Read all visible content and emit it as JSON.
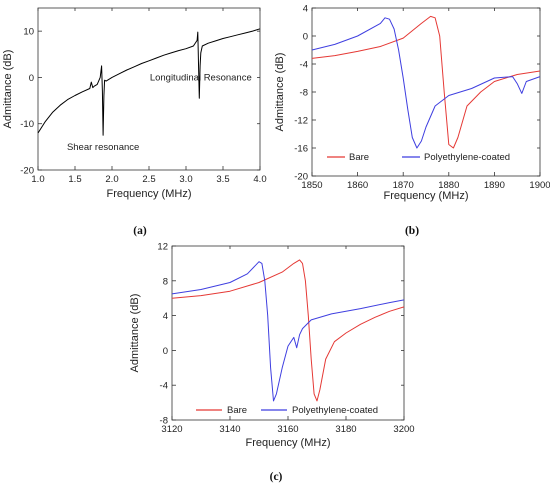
{
  "chart_data": [
    {
      "type": "line",
      "caption": "(a)",
      "xlabel": "Frequency (MHz)",
      "ylabel": "Admittance (dB)",
      "xlim": [
        1.0,
        4.0
      ],
      "ylim": [
        -20,
        15
      ],
      "xticks": [
        1.0,
        1.5,
        2.0,
        2.5,
        3.0,
        3.5,
        4.0
      ],
      "yticks": [
        -20,
        -10,
        0,
        10
      ],
      "xtick_labels": [
        "1.0",
        "1.5",
        "2.0",
        "2.5",
        "3.0",
        "3.5",
        "4.0"
      ],
      "ytick_labels": [
        "-20",
        "-10",
        "0",
        "10"
      ],
      "annotations": [
        {
          "text": "Shear resonance",
          "x": 1.88,
          "y": -15
        },
        {
          "text": "Longitudinal Resonance",
          "x": 3.2,
          "y": 0
        }
      ],
      "series": [
        {
          "color": "#000000",
          "x": [
            1.0,
            1.1,
            1.2,
            1.3,
            1.4,
            1.5,
            1.6,
            1.7,
            1.72,
            1.74,
            1.76,
            1.8,
            1.84,
            1.86,
            1.87,
            1.88,
            1.89,
            1.9,
            1.92,
            2.0,
            2.1,
            2.2,
            2.3,
            2.4,
            2.5,
            2.6,
            2.7,
            2.8,
            2.9,
            3.0,
            3.1,
            3.15,
            3.16,
            3.17,
            3.18,
            3.19,
            3.2,
            3.22,
            3.3,
            3.4,
            3.5,
            3.6,
            3.7,
            3.8,
            3.9,
            4.0
          ],
          "y": [
            -12.0,
            -9.5,
            -7.5,
            -6.0,
            -4.8,
            -3.9,
            -3.1,
            -2.4,
            -1.0,
            -2.2,
            -1.9,
            -1.5,
            0.0,
            2.5,
            -3.0,
            -12.5,
            -4.0,
            -0.6,
            -0.8,
            0.0,
            0.8,
            1.6,
            2.3,
            3.0,
            3.6,
            4.2,
            4.8,
            5.3,
            5.8,
            6.2,
            6.8,
            8.0,
            9.8,
            2.0,
            -4.5,
            2.5,
            5.3,
            6.8,
            7.4,
            7.9,
            8.4,
            8.8,
            9.2,
            9.6,
            10.0,
            10.5
          ]
        }
      ]
    },
    {
      "type": "line",
      "caption": "(b)",
      "xlabel": "Frequency (MHz)",
      "ylabel": "Admittance (dB)",
      "xlim": [
        1850,
        1900
      ],
      "ylim": [
        -20,
        4
      ],
      "xticks": [
        1850,
        1860,
        1870,
        1880,
        1890,
        1900
      ],
      "yticks": [
        -20,
        -16,
        -12,
        -8,
        -4,
        0,
        4
      ],
      "xtick_labels": [
        "1850",
        "1860",
        "1870",
        "1880",
        "1890",
        "1900"
      ],
      "ytick_labels": [
        "-20",
        "-16",
        "-12",
        "-8",
        "-4",
        "0",
        "4"
      ],
      "legend": [
        "Bare",
        "Polyethylene-coated"
      ],
      "series": [
        {
          "name": "Bare",
          "color": "#e53935",
          "x": [
            1850,
            1855,
            1860,
            1865,
            1870,
            1874,
            1876,
            1877,
            1878,
            1879,
            1880,
            1881,
            1882,
            1884,
            1887,
            1890,
            1895,
            1900
          ],
          "y": [
            -3.2,
            -2.8,
            -2.2,
            -1.5,
            -0.3,
            1.8,
            2.8,
            2.6,
            0.0,
            -8.0,
            -15.5,
            -16.0,
            -14.5,
            -10.0,
            -8.0,
            -6.5,
            -5.5,
            -5.0
          ]
        },
        {
          "name": "Polyethylene-coated",
          "color": "#3f3fe0",
          "x": [
            1850,
            1855,
            1860,
            1865,
            1866,
            1867,
            1868,
            1869,
            1870,
            1871,
            1872,
            1873,
            1874,
            1875,
            1877,
            1880,
            1885,
            1890,
            1894,
            1895,
            1896,
            1897,
            1900
          ],
          "y": [
            -2.0,
            -1.2,
            0.0,
            1.8,
            2.6,
            2.4,
            1.0,
            -2.0,
            -6.0,
            -10.5,
            -14.5,
            -16.0,
            -15.0,
            -13.0,
            -10.0,
            -8.5,
            -7.5,
            -6.0,
            -5.8,
            -6.8,
            -8.2,
            -6.5,
            -5.8
          ]
        }
      ]
    },
    {
      "type": "line",
      "caption": "(c)",
      "xlabel": "Frequency (MHz)",
      "ylabel": "Admittance (dB)",
      "xlim": [
        3120,
        3200
      ],
      "ylim": [
        -8,
        12
      ],
      "xticks": [
        3120,
        3140,
        3160,
        3180,
        3200
      ],
      "yticks": [
        -8,
        -4,
        0,
        4,
        8,
        12
      ],
      "xtick_labels": [
        "3120",
        "3140",
        "3160",
        "3180",
        "3200"
      ],
      "ytick_labels": [
        "-8",
        "-4",
        "0",
        "4",
        "8",
        "12"
      ],
      "legend": [
        "Bare",
        "Polyethylene-coated"
      ],
      "series": [
        {
          "name": "Bare",
          "color": "#e53935",
          "x": [
            3120,
            3130,
            3140,
            3150,
            3158,
            3162,
            3164,
            3165,
            3166,
            3167,
            3168,
            3169,
            3170,
            3171,
            3173,
            3176,
            3180,
            3185,
            3190,
            3195,
            3200
          ],
          "y": [
            6.0,
            6.3,
            6.8,
            7.8,
            9.0,
            10.0,
            10.4,
            10.0,
            8.0,
            4.0,
            -1.0,
            -5.0,
            -5.8,
            -4.5,
            -1.0,
            1.0,
            2.0,
            3.0,
            3.8,
            4.5,
            5.0
          ]
        },
        {
          "name": "Polyethylene-coated",
          "color": "#3f3fe0",
          "x": [
            3120,
            3130,
            3140,
            3146,
            3150,
            3151,
            3152,
            3153,
            3154,
            3155,
            3156,
            3158,
            3160,
            3162,
            3163,
            3164,
            3165,
            3168,
            3175,
            3185,
            3195,
            3200
          ],
          "y": [
            6.5,
            7.0,
            7.8,
            8.8,
            10.2,
            10.0,
            8.0,
            4.0,
            -2.0,
            -5.8,
            -5.0,
            -2.0,
            0.5,
            1.5,
            0.3,
            1.8,
            2.5,
            3.5,
            4.2,
            4.8,
            5.5,
            5.8
          ]
        }
      ]
    }
  ]
}
